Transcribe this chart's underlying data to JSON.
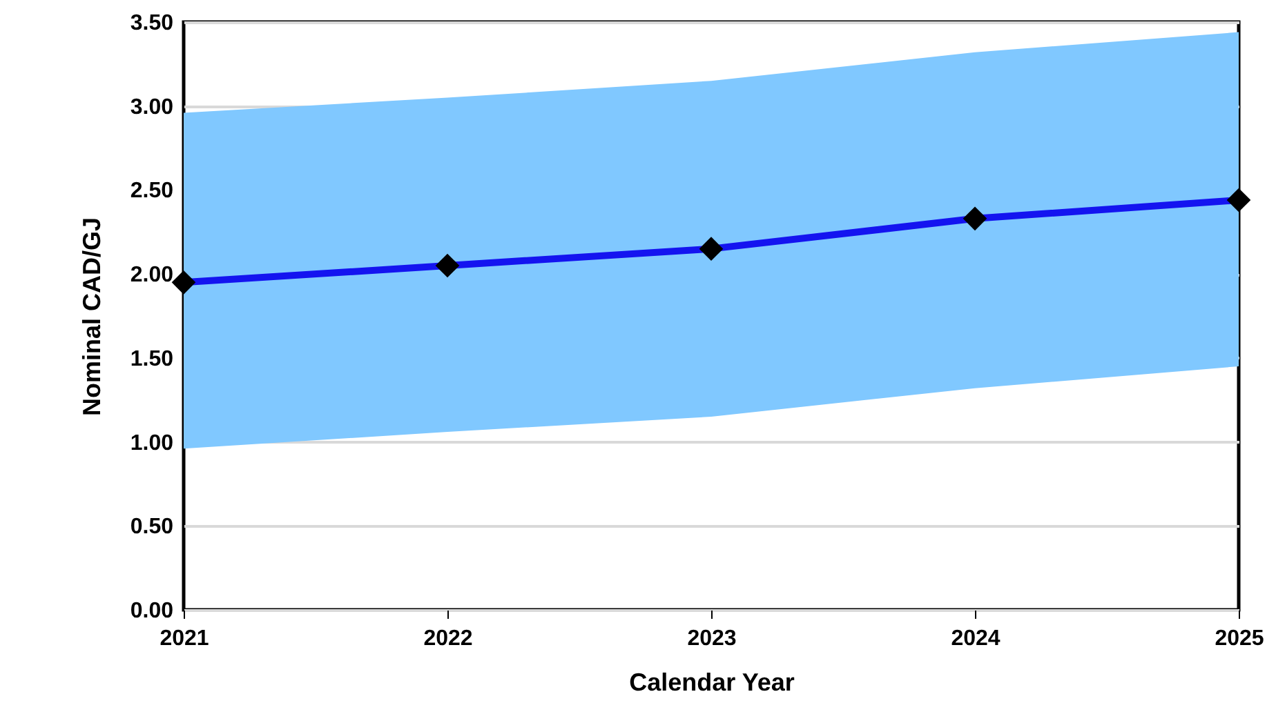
{
  "chart_data": {
    "type": "line",
    "xlabel": "Calendar Year",
    "ylabel": "Nominal CAD/GJ",
    "x": [
      2021,
      2022,
      2023,
      2024,
      2025
    ],
    "series": [
      {
        "color": "#1414f0",
        "values": [
          1.95,
          2.05,
          2.15,
          2.33,
          2.44
        ],
        "lower": [
          0.96,
          1.06,
          1.15,
          1.32,
          1.45
        ],
        "upper": [
          2.96,
          3.05,
          3.15,
          3.32,
          3.44
        ]
      }
    ],
    "xlim": [
      2021,
      2025
    ],
    "xticks": [
      2021,
      2022,
      2023,
      2024,
      2025
    ],
    "ylim": [
      0,
      3.5
    ],
    "yticks": [
      {
        "value": 0,
        "label": "0.00"
      },
      {
        "value": 0.5,
        "label": "0.50"
      },
      {
        "value": 1,
        "label": "1.00"
      },
      {
        "value": 1.5,
        "label": "1.50"
      },
      {
        "value": 2,
        "label": "2.00"
      },
      {
        "value": 2.5,
        "label": "2.50"
      },
      {
        "value": 3,
        "label": "3.00"
      },
      {
        "value": 3.5,
        "label": "3.50"
      }
    ],
    "grid": "y",
    "marker": "diamond",
    "line_style": "solid"
  }
}
